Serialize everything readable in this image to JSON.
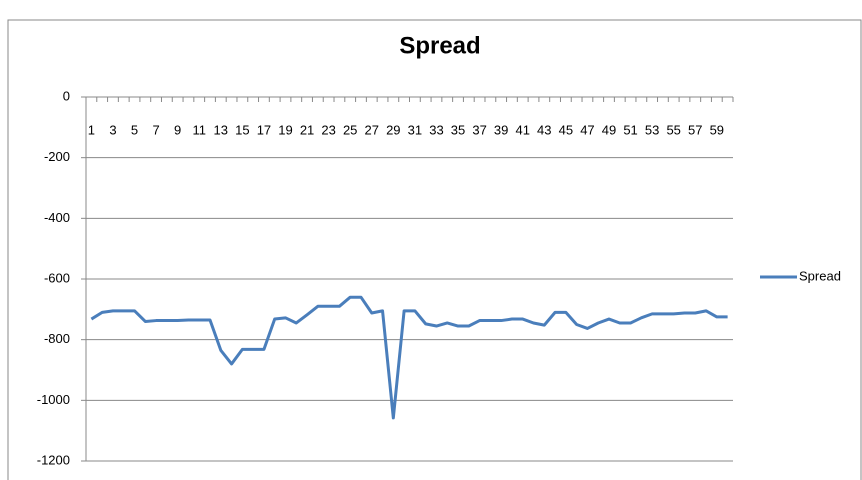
{
  "chart_data": {
    "type": "line",
    "title": "Spread",
    "categories": [
      "1",
      null,
      "3",
      null,
      "5",
      null,
      "7",
      null,
      "9",
      null,
      "11",
      null,
      "13",
      null,
      "15",
      null,
      "17",
      null,
      "19",
      null,
      "21",
      null,
      "23",
      null,
      "25",
      null,
      "27",
      null,
      "29",
      null,
      "31",
      null,
      "33",
      null,
      "35",
      null,
      "37",
      null,
      "39",
      null,
      "41",
      null,
      "43",
      null,
      "45",
      null,
      "47",
      null,
      "49",
      null,
      "51",
      null,
      "53",
      null,
      "55",
      null,
      "57",
      null,
      "59",
      null
    ],
    "series": [
      {
        "name": "Spread",
        "color": "#4a7ebb",
        "values": [
          -732,
          -710,
          -705,
          -705,
          -705,
          -740,
          -737,
          -737,
          -737,
          -735,
          -735,
          -735,
          -835,
          -880,
          -832,
          -832,
          -832,
          -732,
          -728,
          -745,
          -718,
          -690,
          -690,
          -690,
          -660,
          -660,
          -712,
          -705,
          -1058,
          -705,
          -705,
          -748,
          -755,
          -745,
          -755,
          -755,
          -737,
          -737,
          -737,
          -732,
          -732,
          -745,
          -752,
          -710,
          -710,
          -750,
          -763,
          -745,
          -732,
          -745,
          -745,
          -728,
          -715,
          -715,
          -715,
          -712,
          -712,
          -705,
          -725,
          -725
        ]
      }
    ],
    "ylim": [
      -1200,
      0
    ],
    "yticks": [
      0,
      -200,
      -400,
      -600,
      -800,
      -1000,
      -1200
    ],
    "grid": true,
    "legend": "right"
  }
}
